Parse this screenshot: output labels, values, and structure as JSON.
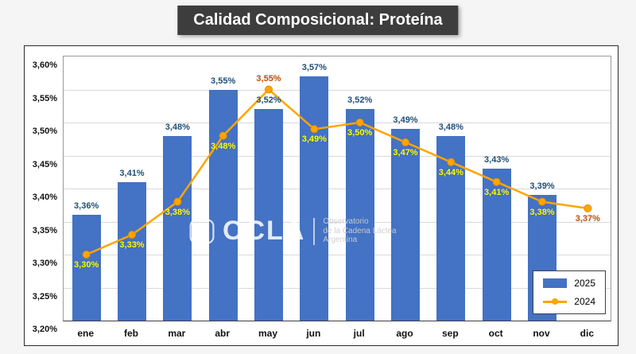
{
  "page": {
    "title": "Calidad Composicional: Proteína"
  },
  "watermark": {
    "name": "OCLA",
    "line1": "Observatorio",
    "line2": "de la Cadena Láctea",
    "line3": "Argentina"
  },
  "chart_data": {
    "type": "bar",
    "subtype": "combo-bar-line",
    "title": "Calidad Composicional: Proteína",
    "categories": [
      "ene",
      "feb",
      "mar",
      "abr",
      "may",
      "jun",
      "jul",
      "ago",
      "sep",
      "oct",
      "nov",
      "dic"
    ],
    "ylim": [
      3.2,
      3.6
    ],
    "ytick_values": [
      3.6,
      3.55,
      3.5,
      3.45,
      3.4,
      3.35,
      3.3,
      3.25,
      3.2
    ],
    "ytick_labels": [
      "3,60%",
      "3,55%",
      "3,50%",
      "3,45%",
      "3,40%",
      "3,35%",
      "3,30%",
      "3,25%",
      "3,20%"
    ],
    "grid": true,
    "legend_position": "bottom-right",
    "series": [
      {
        "name": "2025",
        "type": "bar",
        "color": "#4472C4",
        "label_color": "#1F4E79",
        "values": [
          3.36,
          3.41,
          3.48,
          3.55,
          3.52,
          3.57,
          3.52,
          3.49,
          3.48,
          3.43,
          3.39,
          null
        ],
        "labels": [
          "3,36%",
          "3,41%",
          "3,48%",
          "3,55%",
          "3,52%",
          "3,57%",
          "3,52%",
          "3,49%",
          "3,48%",
          "3,43%",
          "3,39%",
          ""
        ]
      },
      {
        "name": "2024",
        "type": "line",
        "color": "#FFA500",
        "marker_stroke": "#E08E00",
        "values": [
          3.3,
          3.33,
          3.38,
          3.48,
          3.55,
          3.49,
          3.5,
          3.47,
          3.44,
          3.41,
          3.38,
          3.37
        ],
        "labels": [
          "3,30%",
          "3,33%",
          "3,38%",
          "3,48%",
          "3,55%",
          "3,49%",
          "3,50%",
          "3,47%",
          "3,44%",
          "3,41%",
          "3,38%",
          "3,37%"
        ],
        "label_colors": [
          "#FFFF00",
          "#FFFF00",
          "#FFFF00",
          "#FFFF00",
          "#C55A11",
          "#FFFF00",
          "#FFFF00",
          "#FFFF00",
          "#FFFF00",
          "#FFFF00",
          "#FFFF00",
          "#C55A11"
        ],
        "label_positions": [
          "below",
          "below",
          "below",
          "below",
          "above",
          "below",
          "below",
          "below",
          "below",
          "below",
          "below",
          "below"
        ]
      }
    ]
  }
}
